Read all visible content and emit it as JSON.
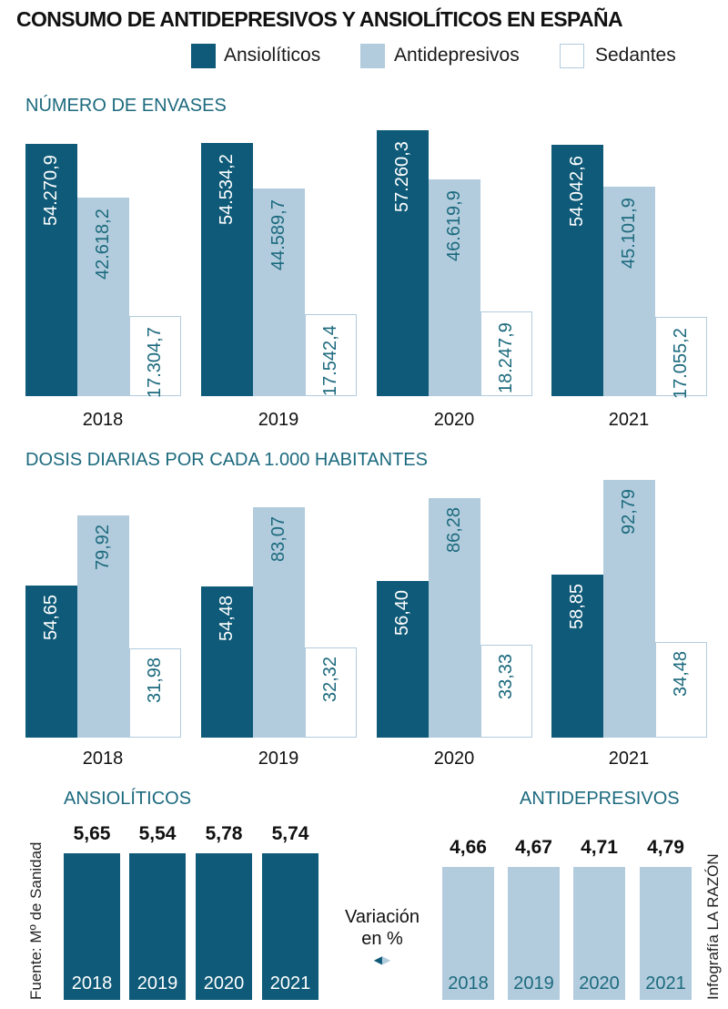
{
  "title": "CONSUMO DE ANTIDEPRESIVOS Y ANSIOLÍTICOS EN ESPAÑA",
  "colors": {
    "ansioliticos": "#0e5a78",
    "antidepresivos": "#b2ccdd",
    "sedantes": "#ffffff",
    "accent_text": "#1c6a7e"
  },
  "legend": [
    "Ansiolíticos",
    "Antidepresivos",
    "Sedantes"
  ],
  "chart_data": [
    {
      "type": "bar",
      "title": "NÚMERO DE ENVASES",
      "categories": [
        "2018",
        "2019",
        "2020",
        "2021"
      ],
      "series": [
        {
          "name": "Ansiolíticos",
          "values": [
            54270.9,
            54534.2,
            57260.3,
            54042.6
          ],
          "labels": [
            "54.270,9",
            "54.534,2",
            "57.260,3",
            "54.042,6"
          ]
        },
        {
          "name": "Antidepresivos",
          "values": [
            42618.2,
            44589.7,
            46619.9,
            45101.9
          ],
          "labels": [
            "42.618,2",
            "44.589,7",
            "46.619,9",
            "45.101,9"
          ]
        },
        {
          "name": "Sedantes",
          "values": [
            17304.7,
            17542.4,
            18247.9,
            17055.2
          ],
          "labels": [
            "17.304,7",
            "17.542,4",
            "18.247,9",
            "17.055,2"
          ]
        }
      ],
      "ylim": [
        0,
        58000
      ]
    },
    {
      "type": "bar",
      "title": "DOSIS DIARIAS POR CADA 1.000 HABITANTES",
      "categories": [
        "2018",
        "2019",
        "2020",
        "2021"
      ],
      "series": [
        {
          "name": "Ansiolíticos",
          "values": [
            54.65,
            54.48,
            56.4,
            58.85
          ],
          "labels": [
            "54,65",
            "54,48",
            "56,40",
            "58,85"
          ]
        },
        {
          "name": "Antidepresivos",
          "values": [
            79.92,
            83.07,
            86.28,
            92.79
          ],
          "labels": [
            "79,92",
            "83,07",
            "86,28",
            "92,79"
          ]
        },
        {
          "name": "Sedantes",
          "values": [
            31.98,
            32.32,
            33.33,
            34.48
          ],
          "labels": [
            "31,98",
            "32,32",
            "33,33",
            "34,48"
          ]
        }
      ],
      "ylim": [
        0,
        93
      ]
    },
    {
      "type": "bar",
      "title": "ANSIOLÍTICOS",
      "categories": [
        "2018",
        "2019",
        "2020",
        "2021"
      ],
      "values": [
        5.65,
        5.54,
        5.78,
        5.74
      ],
      "labels": [
        "5,65",
        "5,54",
        "5,78",
        "5,74"
      ]
    },
    {
      "type": "bar",
      "title": "ANTIDEPRESIVOS",
      "categories": [
        "2018",
        "2019",
        "2020",
        "2021"
      ],
      "values": [
        4.66,
        4.67,
        4.71,
        4.79
      ],
      "labels": [
        "4,66",
        "4,67",
        "4,71",
        "4,79"
      ]
    }
  ],
  "variation_label": [
    "Variación",
    "en %"
  ],
  "source": "Fuente: Mº de Sanidad",
  "credit": "Infografía LA RAZÓN"
}
